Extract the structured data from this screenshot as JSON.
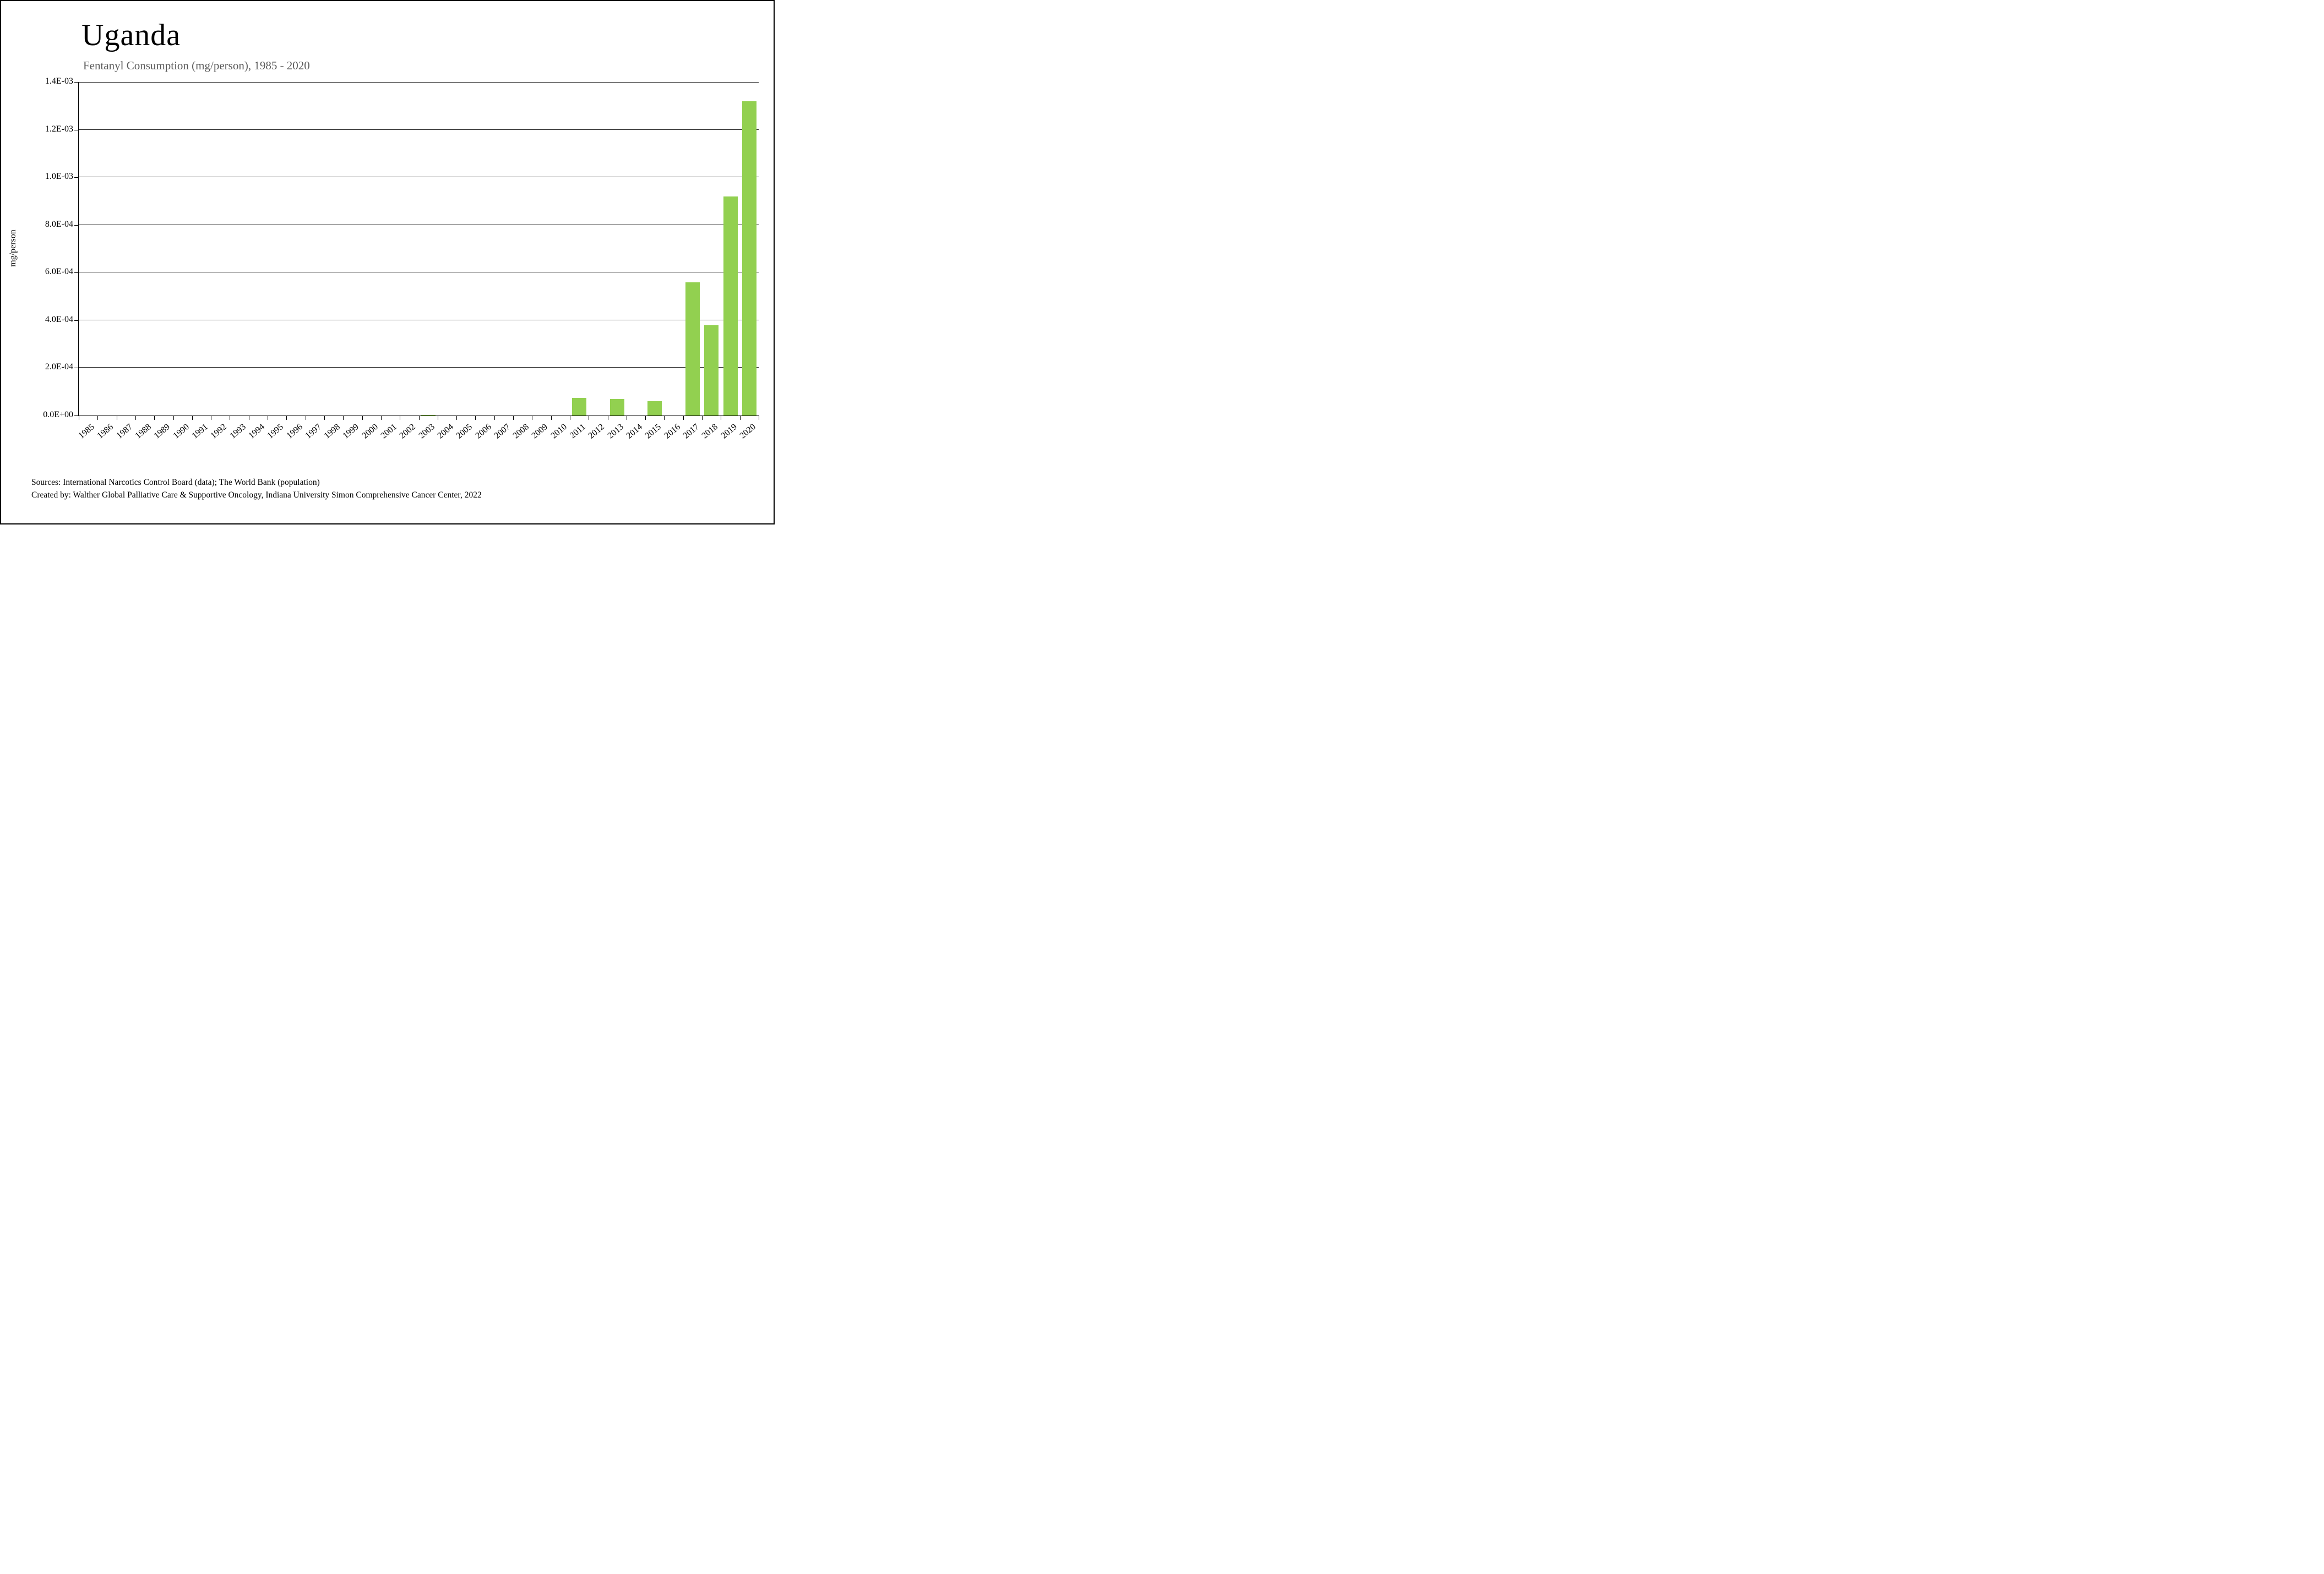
{
  "title": "Uganda",
  "subtitle": "Fentanyl Consumption (mg/person), 1985 - 2020",
  "footer": {
    "sources": "Sources: International Narcotics Control Board (data); The World Bank (population)",
    "created": "Created by: Walther Global Palliative Care & Supportive Oncology, Indiana University Simon Comprehensive Cancer Center, 2022"
  },
  "chart_data": {
    "type": "bar",
    "title": "Uganda",
    "subtitle": "Fentanyl Consumption (mg/person), 1985 - 2020",
    "xlabel": "",
    "ylabel": "mg/person",
    "bar_color": "#92d050",
    "grid": true,
    "legend": "none",
    "ylim": [
      0,
      0.0014
    ],
    "yticks": [
      {
        "value": 0.0,
        "label": "0.0E+00"
      },
      {
        "value": 0.0002,
        "label": "2.0E-04"
      },
      {
        "value": 0.0004,
        "label": "4.0E-04"
      },
      {
        "value": 0.0006,
        "label": "6.0E-04"
      },
      {
        "value": 0.0008,
        "label": "8.0E-04"
      },
      {
        "value": 0.001,
        "label": "1.0E-03"
      },
      {
        "value": 0.0012,
        "label": "1.2E-03"
      },
      {
        "value": 0.0014,
        "label": "1.4E-03"
      }
    ],
    "categories": [
      "1985",
      "1986",
      "1987",
      "1988",
      "1989",
      "1990",
      "1991",
      "1992",
      "1993",
      "1994",
      "1995",
      "1996",
      "1997",
      "1998",
      "1999",
      "2000",
      "2001",
      "2002",
      "2003",
      "2004",
      "2005",
      "2006",
      "2007",
      "2008",
      "2009",
      "2010",
      "2011",
      "2012",
      "2013",
      "2014",
      "2015",
      "2016",
      "2017",
      "2018",
      "2019",
      "2020"
    ],
    "values": [
      0,
      0,
      0,
      0,
      0,
      0,
      0,
      0,
      0,
      0,
      0,
      0,
      0,
      0,
      0,
      0,
      0,
      0,
      2e-06,
      0,
      0,
      0,
      0,
      0,
      0,
      0,
      7.5e-05,
      0,
      7e-05,
      0,
      6e-05,
      0,
      0.00056,
      0.00038,
      0.00092,
      0.00132
    ]
  }
}
